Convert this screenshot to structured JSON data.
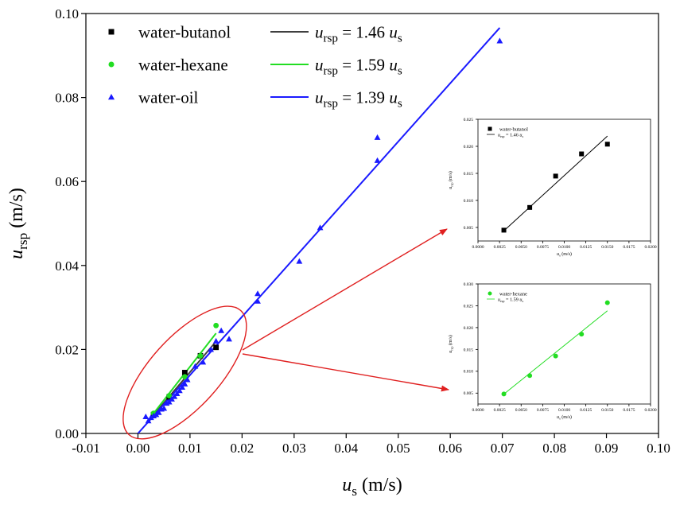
{
  "chart_data": [
    {
      "type": "scatter",
      "xlabel": "u_s (m/s)",
      "ylabel": "u_rsp (m/s)",
      "xlim": [
        -0.01,
        0.1
      ],
      "ylim": [
        0.0,
        0.1
      ],
      "x_ticks": [
        "-0.01",
        "0.00",
        "0.01",
        "0.02",
        "0.03",
        "0.04",
        "0.05",
        "0.06",
        "0.07",
        "0.08",
        "0.09",
        "0.10"
      ],
      "y_ticks": [
        "0.00",
        "0.02",
        "0.04",
        "0.06",
        "0.08",
        "0.10"
      ],
      "legend_placement": "top-left",
      "series": [
        {
          "name": "water-butanol",
          "fit_label": "u_rsp = 1.46 u_s",
          "slope": 1.46,
          "marker": "square",
          "color": "#000000",
          "line_color": "#404040",
          "fit_range": [
            0.003,
            0.015
          ],
          "points": [
            [
              0.003,
              0.0045
            ],
            [
              0.006,
              0.0087
            ],
            [
              0.009,
              0.0145
            ],
            [
              0.012,
              0.0185
            ],
            [
              0.015,
              0.0205
            ]
          ]
        },
        {
          "name": "water-hexane",
          "fit_label": "u_rsp = 1.59 u_s",
          "slope": 1.59,
          "marker": "circle",
          "color": "#22dd22",
          "line_color": "#22dd22",
          "fit_range": [
            0.003,
            0.015
          ],
          "points": [
            [
              0.003,
              0.0048
            ],
            [
              0.006,
              0.009
            ],
            [
              0.009,
              0.0135
            ],
            [
              0.012,
              0.0185
            ],
            [
              0.015,
              0.0257
            ]
          ]
        },
        {
          "name": "water-oil",
          "fit_label": "u_rsp = 1.39 u_s",
          "slope": 1.39,
          "marker": "triangle",
          "color": "#1a1aff",
          "line_color": "#1a1aff",
          "fit_range": [
            0,
            0.0695
          ],
          "points": [
            [
              0.0015,
              0.004
            ],
            [
              0.002,
              0.003
            ],
            [
              0.0025,
              0.0038
            ],
            [
              0.003,
              0.0042
            ],
            [
              0.0035,
              0.0045
            ],
            [
              0.004,
              0.005
            ],
            [
              0.0045,
              0.0058
            ],
            [
              0.005,
              0.006
            ],
            [
              0.0055,
              0.0072
            ],
            [
              0.006,
              0.0075
            ],
            [
              0.0065,
              0.0082
            ],
            [
              0.007,
              0.0088
            ],
            [
              0.0075,
              0.0095
            ],
            [
              0.008,
              0.0102
            ],
            [
              0.0085,
              0.011
            ],
            [
              0.009,
              0.0118
            ],
            [
              0.0095,
              0.0128
            ],
            [
              0.011,
              0.016
            ],
            [
              0.0125,
              0.017
            ],
            [
              0.014,
              0.02
            ],
            [
              0.015,
              0.022
            ],
            [
              0.016,
              0.0245
            ],
            [
              0.0175,
              0.0225
            ],
            [
              0.023,
              0.0315
            ],
            [
              0.023,
              0.0333
            ],
            [
              0.031,
              0.041
            ],
            [
              0.035,
              0.049
            ],
            [
              0.046,
              0.065
            ],
            [
              0.046,
              0.0705
            ],
            [
              0.0695,
              0.0935
            ]
          ]
        }
      ]
    },
    {
      "type": "scatter",
      "xlabel": "u_s (m/s)",
      "ylabel": "u_rsp (m/s)",
      "xlim": [
        0,
        0.02
      ],
      "ylim": [
        0.0025,
        0.025
      ],
      "x_ticks": [
        "0.0000",
        "0.0025",
        "0.0050",
        "0.0075",
        "0.0100",
        "0.0125",
        "0.0150",
        "0.0175",
        "0.0200"
      ],
      "y_ticks": [
        "0.005",
        "0.010",
        "0.015",
        "0.020",
        "0.025"
      ],
      "series": [
        {
          "name": "water-butanol",
          "fit_label": "u_rsp = 1.46 u_s",
          "slope": 1.46,
          "marker": "square",
          "color": "#000000",
          "fit_range": [
            0.003,
            0.015
          ],
          "points": [
            [
              0.003,
              0.0045
            ],
            [
              0.006,
              0.0087
            ],
            [
              0.009,
              0.0145
            ],
            [
              0.012,
              0.0186
            ],
            [
              0.015,
              0.0204
            ]
          ]
        }
      ]
    },
    {
      "type": "scatter",
      "xlabel": "u_s (m/s)",
      "ylabel": "u_rsp (m/s)",
      "xlim": [
        0,
        0.02
      ],
      "ylim": [
        0.0025,
        0.03
      ],
      "x_ticks": [
        "0.0000",
        "0.0025",
        "0.0050",
        "0.0075",
        "0.0100",
        "0.0125",
        "0.0150",
        "0.0175",
        "0.0200"
      ],
      "y_ticks": [
        "0.005",
        "0.010",
        "0.015",
        "0.020",
        "0.025",
        "0.030"
      ],
      "series": [
        {
          "name": "water-hexane",
          "fit_label": "u_rsp = 1.59 u_s",
          "slope": 1.59,
          "marker": "circle",
          "color": "#22dd22",
          "fit_range": [
            0.003,
            0.015
          ],
          "points": [
            [
              0.003,
              0.0048
            ],
            [
              0.006,
              0.009
            ],
            [
              0.009,
              0.0135
            ],
            [
              0.012,
              0.0185
            ],
            [
              0.015,
              0.0257
            ]
          ]
        }
      ]
    }
  ],
  "annotation_color": "#e02020"
}
